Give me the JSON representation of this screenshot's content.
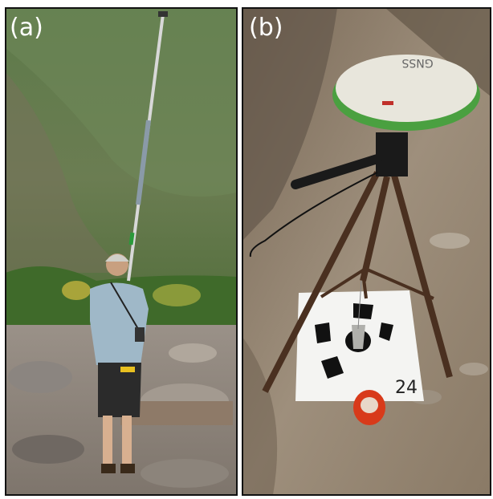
{
  "panels": [
    {
      "label": "(a)"
    },
    {
      "label": "(b)",
      "antenna_text": "GNSS",
      "sheet_note": "24"
    }
  ]
}
